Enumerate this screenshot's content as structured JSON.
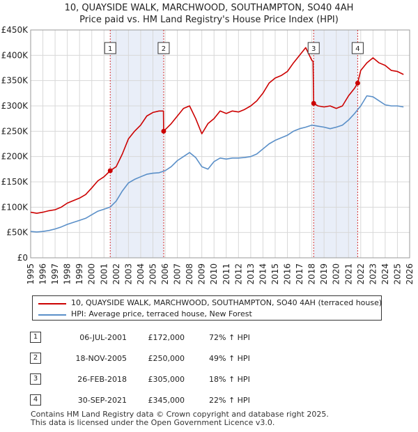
{
  "title": "10, QUAYSIDE WALK, MARCHWOOD, SOUTHAMPTON, SO40 4AH",
  "subtitle": "Price paid vs. HM Land Registry's House Price Index (HPI)",
  "chart_data": {
    "type": "line",
    "title": "10, QUAYSIDE WALK, MARCHWOOD, SOUTHAMPTON, SO40 4AH",
    "subtitle": "Price paid vs. HM Land Registry's House Price Index (HPI)",
    "xlim": [
      1995,
      2026
    ],
    "ylim": [
      0,
      450000
    ],
    "yticks": [
      {
        "v": 0,
        "label": "£0"
      },
      {
        "v": 50000,
        "label": "£50K"
      },
      {
        "v": 100000,
        "label": "£100K"
      },
      {
        "v": 150000,
        "label": "£150K"
      },
      {
        "v": 200000,
        "label": "£200K"
      },
      {
        "v": 250000,
        "label": "£250K"
      },
      {
        "v": 300000,
        "label": "£300K"
      },
      {
        "v": 350000,
        "label": "£350K"
      },
      {
        "v": 400000,
        "label": "£400K"
      },
      {
        "v": 450000,
        "label": "£450K"
      }
    ],
    "xticks": [
      "1995",
      "1996",
      "1997",
      "1998",
      "1999",
      "2000",
      "2001",
      "2002",
      "2003",
      "2004",
      "2005",
      "2006",
      "2007",
      "2008",
      "2009",
      "2010",
      "2011",
      "2012",
      "2013",
      "2014",
      "2015",
      "2016",
      "2017",
      "2018",
      "2019",
      "2020",
      "2021",
      "2022",
      "2023",
      "2024",
      "2025",
      "2026"
    ],
    "grid": true,
    "shaded_periods": [
      [
        2001.51,
        2005.88
      ],
      [
        2018.15,
        2021.75
      ]
    ],
    "series": [
      {
        "name": "10, QUAYSIDE WALK, MARCHWOOD, SOUTHAMPTON, SO40 4AH (terraced house)",
        "color": "#cc0000",
        "x": [
          1995.0,
          1995.5,
          1996.0,
          1996.5,
          1997.0,
          1997.5,
          1998.0,
          1998.5,
          1999.0,
          1999.5,
          2000.0,
          2000.5,
          2001.0,
          2001.51,
          2002.0,
          2002.5,
          2003.0,
          2003.5,
          2004.0,
          2004.5,
          2005.0,
          2005.5,
          2005.86,
          2005.88,
          2006.5,
          2007.0,
          2007.5,
          2008.0,
          2008.5,
          2009.0,
          2009.5,
          2010.0,
          2010.5,
          2011.0,
          2011.5,
          2012.0,
          2012.5,
          2013.0,
          2013.5,
          2014.0,
          2014.5,
          2015.0,
          2015.5,
          2016.0,
          2016.5,
          2017.0,
          2017.5,
          2018.0,
          2018.1,
          2018.15,
          2018.5,
          2019.0,
          2019.5,
          2020.0,
          2020.5,
          2021.0,
          2021.5,
          2021.75,
          2022.0,
          2022.5,
          2023.0,
          2023.5,
          2024.0,
          2024.5,
          2025.0,
          2025.5
        ],
        "y": [
          90000,
          88000,
          90000,
          93000,
          95000,
          100000,
          108000,
          113000,
          118000,
          125000,
          138000,
          152000,
          160000,
          172000,
          180000,
          205000,
          235000,
          250000,
          262000,
          280000,
          287000,
          290000,
          290000,
          250000,
          265000,
          280000,
          295000,
          300000,
          275000,
          245000,
          265000,
          275000,
          290000,
          285000,
          290000,
          288000,
          293000,
          300000,
          310000,
          325000,
          345000,
          355000,
          360000,
          368000,
          385000,
          400000,
          415000,
          390000,
          388000,
          305000,
          300000,
          298000,
          300000,
          295000,
          300000,
          320000,
          335000,
          345000,
          370000,
          385000,
          395000,
          385000,
          380000,
          370000,
          368000,
          362000
        ]
      },
      {
        "name": "HPI: Average price, terraced house, New Forest",
        "color": "#5a8fc8",
        "x": [
          1995.0,
          1995.5,
          1996.0,
          1996.5,
          1997.0,
          1997.5,
          1998.0,
          1998.5,
          1999.0,
          1999.5,
          2000.0,
          2000.5,
          2001.0,
          2001.5,
          2002.0,
          2002.5,
          2003.0,
          2003.5,
          2004.0,
          2004.5,
          2005.0,
          2005.5,
          2006.0,
          2006.5,
          2007.0,
          2007.5,
          2008.0,
          2008.5,
          2009.0,
          2009.5,
          2010.0,
          2010.5,
          2011.0,
          2011.5,
          2012.0,
          2012.5,
          2013.0,
          2013.5,
          2014.0,
          2014.5,
          2015.0,
          2015.5,
          2016.0,
          2016.5,
          2017.0,
          2017.5,
          2018.0,
          2018.5,
          2019.0,
          2019.5,
          2020.0,
          2020.5,
          2021.0,
          2021.5,
          2022.0,
          2022.5,
          2023.0,
          2023.5,
          2024.0,
          2024.5,
          2025.0,
          2025.5
        ],
        "y": [
          52000,
          51000,
          52000,
          54000,
          57000,
          61000,
          66000,
          70000,
          74000,
          78000,
          85000,
          92000,
          96000,
          100000,
          112000,
          132000,
          148000,
          155000,
          160000,
          165000,
          167000,
          168000,
          172000,
          180000,
          192000,
          200000,
          208000,
          198000,
          180000,
          175000,
          190000,
          197000,
          195000,
          197000,
          197000,
          198000,
          200000,
          205000,
          215000,
          225000,
          232000,
          237000,
          242000,
          250000,
          255000,
          258000,
          262000,
          260000,
          258000,
          255000,
          258000,
          262000,
          272000,
          285000,
          300000,
          320000,
          318000,
          310000,
          302000,
          300000,
          300000,
          298000
        ]
      }
    ],
    "sales": [
      {
        "id": "1",
        "x": 2001.51,
        "price": 172000
      },
      {
        "id": "2",
        "x": 2005.88,
        "price": 250000
      },
      {
        "id": "3",
        "x": 2018.15,
        "price": 305000
      },
      {
        "id": "4",
        "x": 2021.75,
        "price": 345000
      }
    ]
  },
  "legend": [
    {
      "label": "10, QUAYSIDE WALK, MARCHWOOD, SOUTHAMPTON, SO40 4AH (terraced house)",
      "color": "#cc0000"
    },
    {
      "label": "HPI: Average price, terraced house, New Forest",
      "color": "#5a8fc8"
    }
  ],
  "table": [
    {
      "num": "1",
      "date": "06-JUL-2001",
      "price": "£172,000",
      "hpi": "72% ↑ HPI"
    },
    {
      "num": "2",
      "date": "18-NOV-2005",
      "price": "£250,000",
      "hpi": "49% ↑ HPI"
    },
    {
      "num": "3",
      "date": "26-FEB-2018",
      "price": "£305,000",
      "hpi": "18% ↑ HPI"
    },
    {
      "num": "4",
      "date": "30-SEP-2021",
      "price": "£345,000",
      "hpi": "22% ↑ HPI"
    }
  ],
  "footer": {
    "line1": "Contains HM Land Registry data © Crown copyright and database right 2025.",
    "line2": "This data is licensed under the Open Government Licence v3.0."
  }
}
